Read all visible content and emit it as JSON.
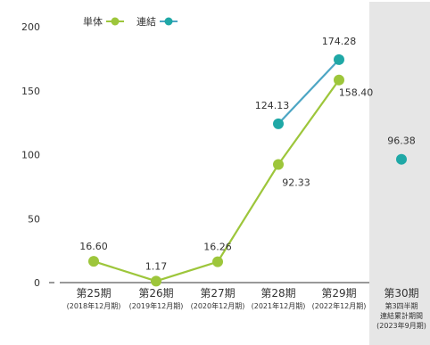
{
  "chart_data": {
    "type": "line",
    "categories": [
      {
        "label": "第25期",
        "sub": [
          "(2018年12月期)"
        ]
      },
      {
        "label": "第26期",
        "sub": [
          "(2019年12月期)"
        ]
      },
      {
        "label": "第27期",
        "sub": [
          "(2020年12月期)"
        ]
      },
      {
        "label": "第28期",
        "sub": [
          "(2021年12月期)"
        ]
      },
      {
        "label": "第29期",
        "sub": [
          "(2022年12月期)"
        ]
      },
      {
        "label": "第30期",
        "sub": [
          "第3四半期",
          "連結累計期間",
          "(2023年9月期)"
        ]
      }
    ],
    "series": [
      {
        "name": "単体",
        "color": "#9dc63b",
        "values": [
          16.6,
          1.17,
          16.26,
          92.33,
          158.4,
          null
        ],
        "labels": [
          "16.60",
          "1.17",
          "16.26",
          "92.33",
          "158.40",
          null
        ]
      },
      {
        "name": "連結",
        "color": "#1fa8a6",
        "line_color": "#4da6c4",
        "values": [
          null,
          null,
          null,
          124.13,
          174.28,
          96.38
        ],
        "labels": [
          null,
          null,
          null,
          "124.13",
          "174.28",
          "96.38"
        ],
        "connect_last": false
      }
    ],
    "ylim": [
      0,
      200
    ],
    "yticks": [
      0,
      50,
      100,
      150,
      200
    ],
    "highlight_category": 5,
    "highlight_color": "#e6e6e6",
    "legend_position": "top"
  }
}
